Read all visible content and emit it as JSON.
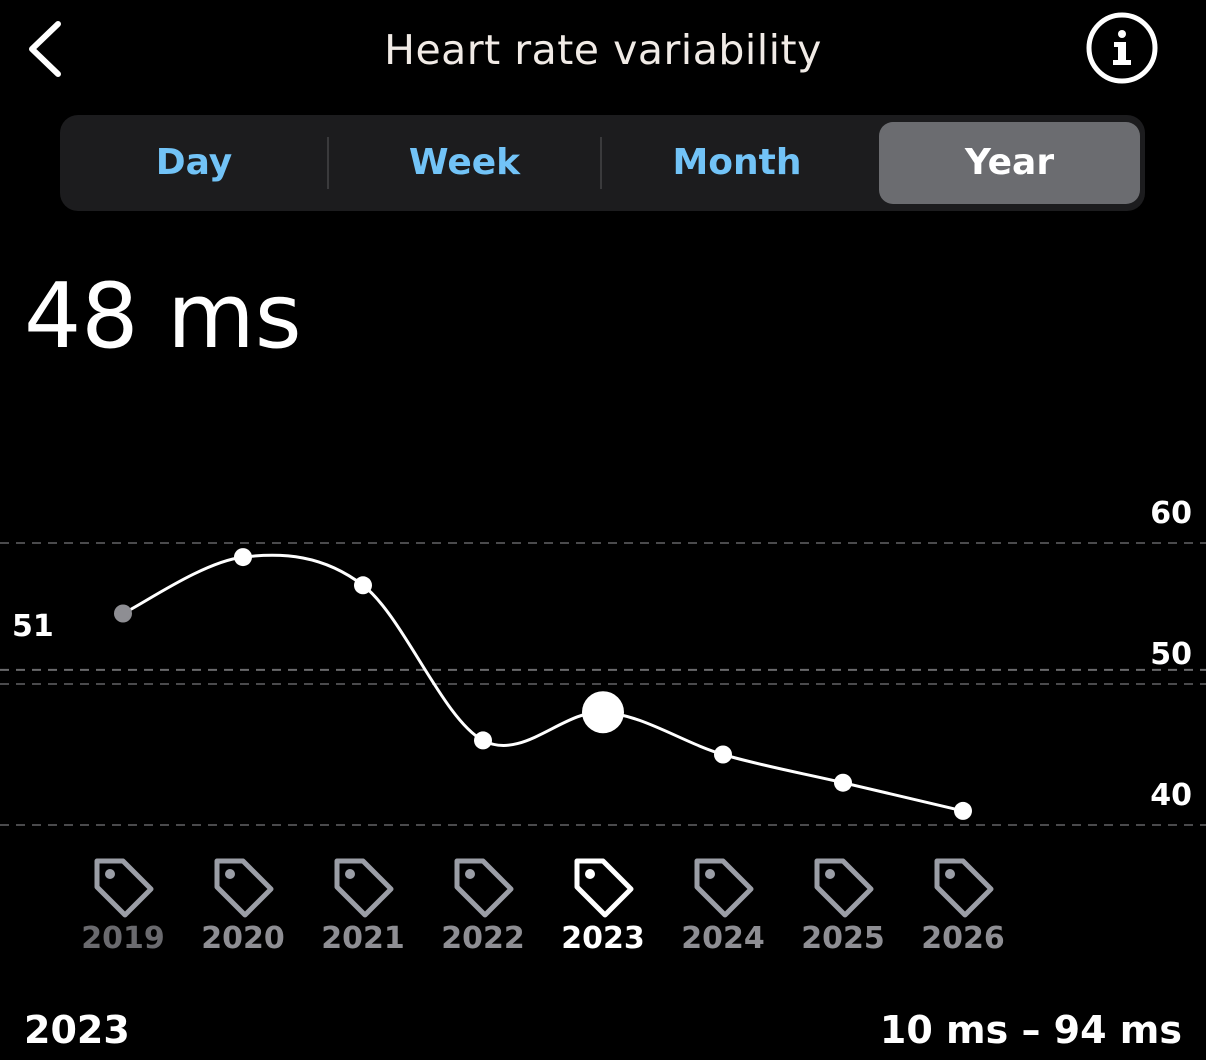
{
  "header": {
    "title": "Heart rate variability",
    "back_icon": "chevron-left-icon",
    "info_icon": "info-circle-icon"
  },
  "tabs": [
    {
      "label": "Day",
      "active": false
    },
    {
      "label": "Week",
      "active": false
    },
    {
      "label": "Month",
      "active": false
    },
    {
      "label": "Year",
      "active": true
    }
  ],
  "summary": {
    "value": "48 ms"
  },
  "footer": {
    "selected_period": "2023",
    "range": "10 ms – 94 ms"
  },
  "colors": {
    "background": "#000000",
    "tab_text": "#72c3f7",
    "tab_active_bg": "#6b6c70",
    "line": "#ffffff",
    "muted_point": "#8e8e93",
    "label_muted": "#8e8e93"
  },
  "chart_data": {
    "type": "line",
    "x": [
      "2019",
      "2020",
      "2021",
      "2022",
      "2023",
      "2024",
      "2025",
      "2026"
    ],
    "values": [
      55,
      59,
      57,
      46,
      48,
      45,
      43,
      41
    ],
    "selected": "2023",
    "ylim": [
      40,
      60
    ],
    "yticks": [
      60,
      50,
      40
    ],
    "reference_line": {
      "label": "51",
      "value": 51
    },
    "x_icon": "tag-icon",
    "grid": true,
    "ylabel_position": "right"
  }
}
